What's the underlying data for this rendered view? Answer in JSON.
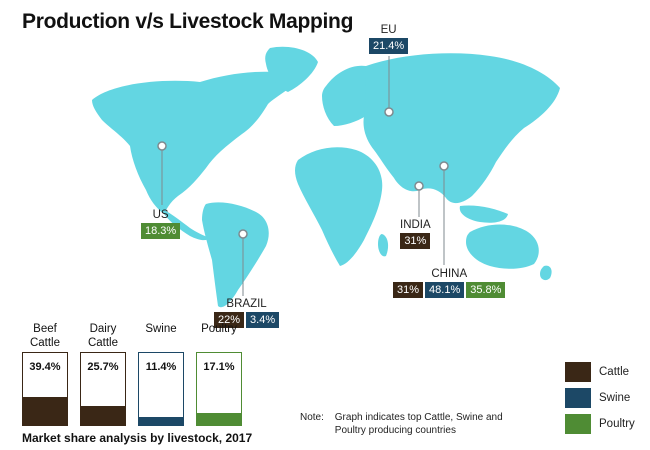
{
  "title": "Production v/s Livestock Mapping",
  "colors": {
    "land": "#63d6e2",
    "cattle": "#3a2716",
    "swine": "#1c4866",
    "poultry": "#4f8c34"
  },
  "countries": {
    "eu": {
      "name": "EU",
      "swine": "21.4%"
    },
    "us": {
      "name": "US",
      "poultry": "18.3%"
    },
    "brazil": {
      "name": "BRAZIL",
      "cattle": "22%",
      "swine": "3.4%"
    },
    "india": {
      "name": "INDIA",
      "cattle": "31%"
    },
    "china": {
      "name": "CHINA",
      "cattle": "31%",
      "swine": "48.1%",
      "poultry": "35.8%"
    }
  },
  "market_share": {
    "caption": "Market share analysis by livestock, 2017",
    "bars": [
      {
        "label": "Beef Cattle",
        "value_text": "39.4%",
        "value": 39.4,
        "category": "cattle"
      },
      {
        "label": "Dairy Cattle",
        "value_text": "25.7%",
        "value": 25.7,
        "category": "cattle"
      },
      {
        "label": "Swine",
        "value_text": "11.4%",
        "value": 11.4,
        "category": "swine"
      },
      {
        "label": "Poultry",
        "value_text": "17.1%",
        "value": 17.1,
        "category": "poultry"
      }
    ]
  },
  "legend": [
    {
      "label": "Cattle",
      "category": "cattle"
    },
    {
      "label": "Swine",
      "category": "swine"
    },
    {
      "label": "Poultry",
      "category": "poultry"
    }
  ],
  "note": {
    "label": "Note:",
    "text": "Graph indicates top Cattle, Swine and Poultry producing countries"
  }
}
